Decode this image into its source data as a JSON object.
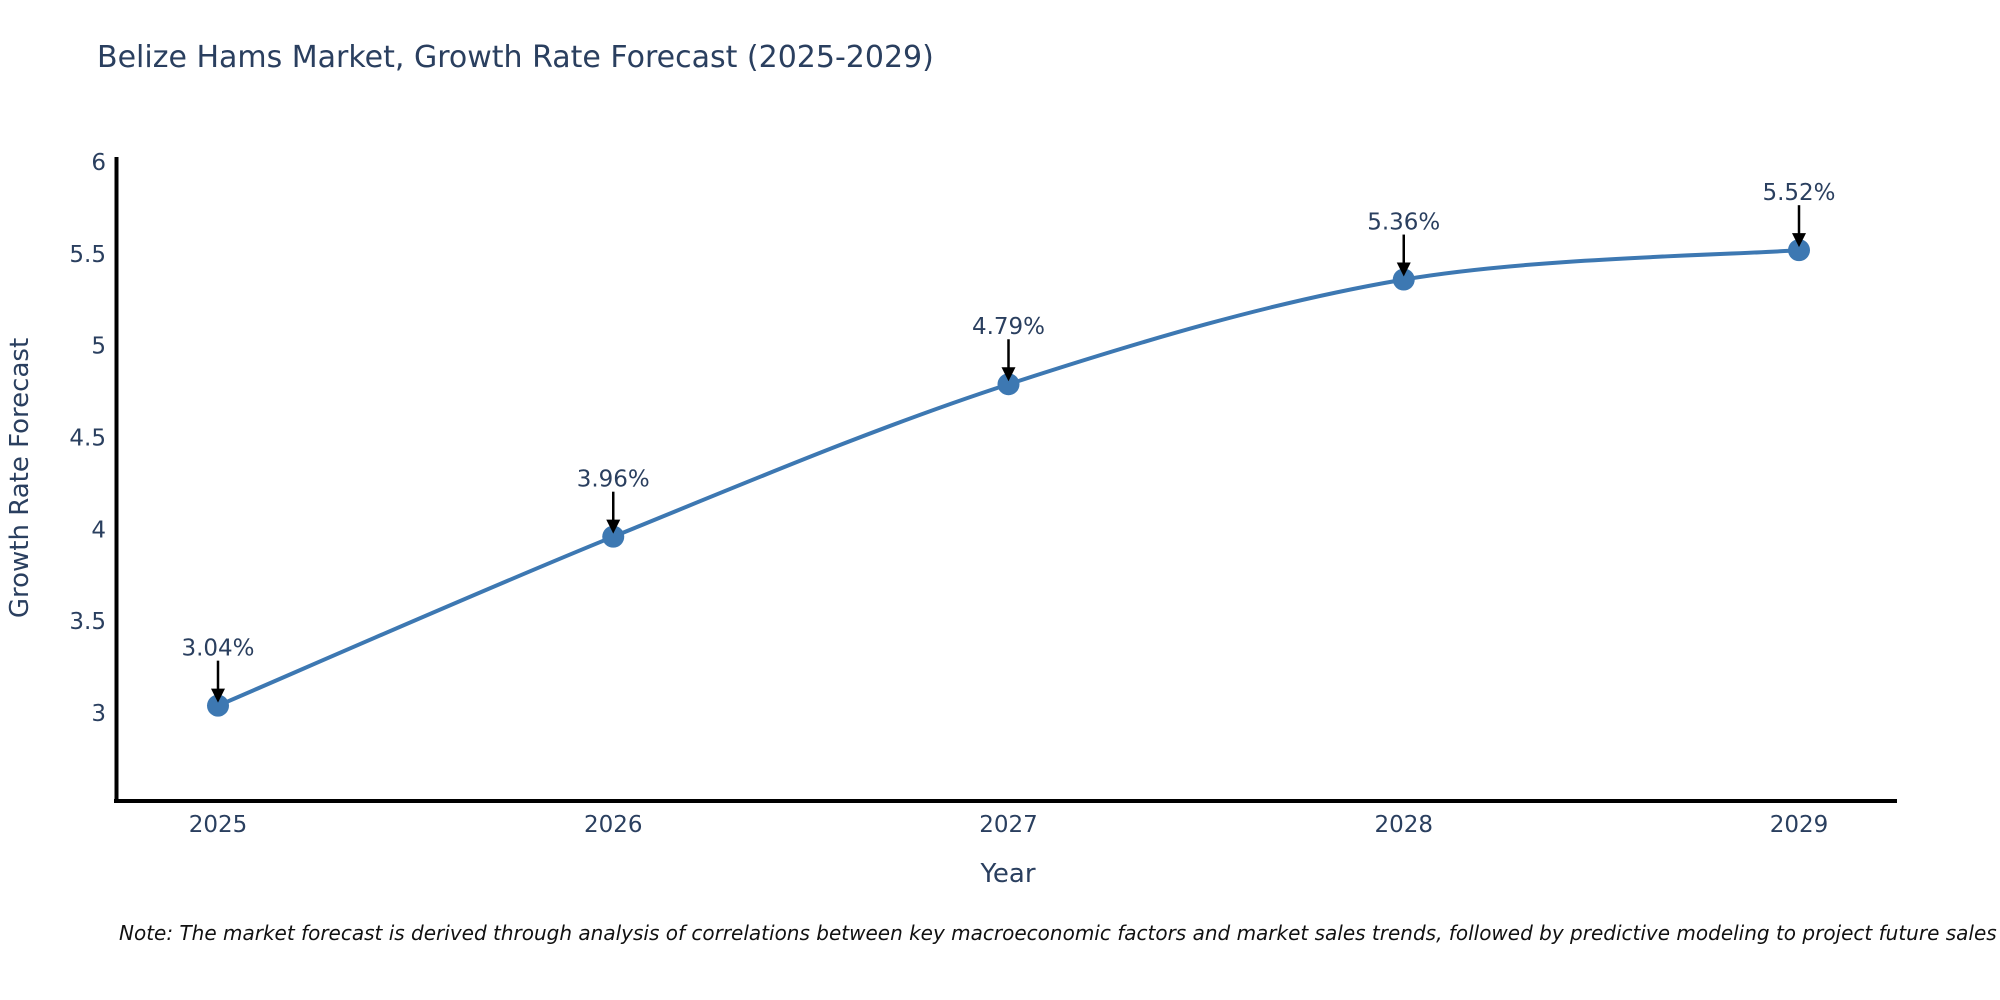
{
  "note": "Note: The market forecast is derived through analysis of correlations between key macroeconomic factors and market sales trends, followed by predictive modeling to project future sales",
  "chart_data": {
    "type": "line",
    "title": "Belize Hams Market, Growth Rate Forecast (2025-2029)",
    "xlabel": "Year",
    "ylabel": "Growth Rate Forecast",
    "categories": [
      2025,
      2026,
      2027,
      2028,
      2029
    ],
    "values": [
      3.04,
      3.96,
      4.79,
      5.36,
      5.52
    ],
    "point_labels": [
      "3.04%",
      "3.96%",
      "4.79%",
      "5.36%",
      "5.52%"
    ],
    "yticks": [
      3,
      3.5,
      4,
      4.5,
      5,
      5.5,
      6
    ],
    "ylim": [
      2.52,
      6.03
    ],
    "line_shape": "spline",
    "grid": false,
    "legend_position": "none",
    "colors": {
      "line": "#3d78b2",
      "marker": "#3d78b2",
      "axis": "#000000",
      "text": "#2a3f5f",
      "annotation_text": "#2a3f5f",
      "annotation_arrow": "#000000",
      "note_text": "#111111",
      "background": "#ffffff"
    }
  }
}
